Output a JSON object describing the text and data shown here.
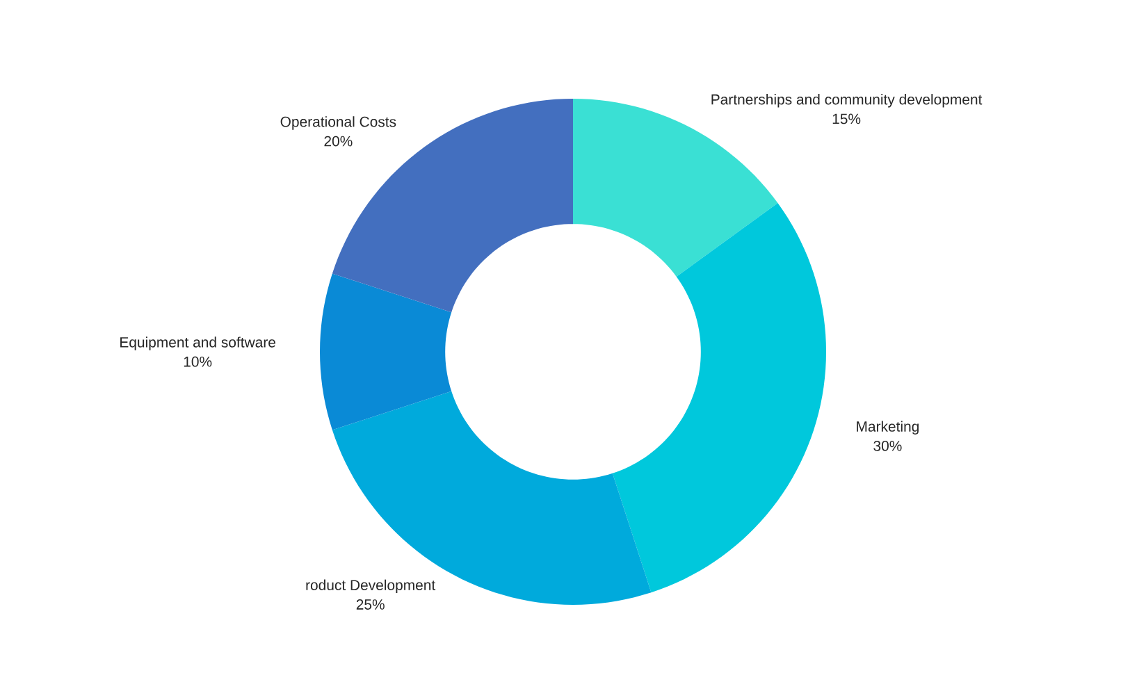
{
  "chart_data": {
    "type": "donut",
    "categories": [
      "Partnerships and community development",
      "Marketing",
      "roduct Development",
      "Equipment and software",
      "Operational Costs"
    ],
    "values": [
      15,
      30,
      25,
      10,
      20
    ],
    "value_labels": [
      "15%",
      "30%",
      "25%",
      "10%",
      "20%"
    ],
    "colors": [
      "#3ae0d4",
      "#00c8dc",
      "#00aadc",
      "#0a8ad6",
      "#436fbf"
    ]
  }
}
